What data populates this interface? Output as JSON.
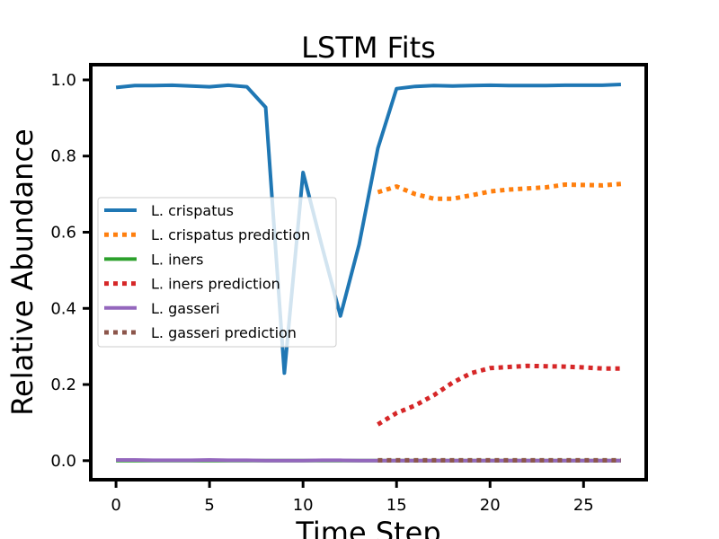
{
  "chart_data": {
    "type": "line",
    "title": "LSTM Fits",
    "xlabel": "Time Step",
    "ylabel": "Relative Abundance",
    "xlim": [
      -1.35,
      28.35
    ],
    "ylim": [
      -0.05,
      1.04
    ],
    "xticks": [
      0,
      5,
      10,
      15,
      20,
      25
    ],
    "yticks": [
      0.0,
      0.2,
      0.4,
      0.6,
      0.8,
      1.0
    ],
    "xtick_labels": [
      "0",
      "5",
      "10",
      "15",
      "20",
      "25"
    ],
    "ytick_labels": [
      "0.0",
      "0.2",
      "0.4",
      "0.6",
      "0.8",
      "1.0"
    ],
    "grid": false,
    "legend_position": "center-left",
    "series": [
      {
        "name": "L. crispatus",
        "color": "#1f77b4",
        "style": "solid",
        "x": [
          0,
          1,
          2,
          3,
          4,
          5,
          6,
          7,
          8,
          9,
          10,
          11,
          12,
          13,
          14,
          15,
          16,
          17,
          18,
          19,
          20,
          21,
          22,
          23,
          24,
          25,
          26,
          27
        ],
        "y": [
          0.98,
          0.985,
          0.985,
          0.986,
          0.984,
          0.982,
          0.986,
          0.982,
          0.928,
          0.23,
          0.757,
          0.565,
          0.38,
          0.568,
          0.82,
          0.977,
          0.983,
          0.985,
          0.984,
          0.985,
          0.986,
          0.985,
          0.985,
          0.985,
          0.986,
          0.986,
          0.986,
          0.988
        ]
      },
      {
        "name": "L. crispatus prediction",
        "color": "#ff7f0e",
        "style": "dotted",
        "x": [
          14,
          15,
          16,
          17,
          18,
          19,
          20,
          21,
          22,
          23,
          24,
          25,
          26,
          27
        ],
        "y": [
          0.705,
          0.72,
          0.7,
          0.688,
          0.688,
          0.697,
          0.707,
          0.712,
          0.715,
          0.718,
          0.725,
          0.724,
          0.723,
          0.727
        ]
      },
      {
        "name": "L. iners",
        "color": "#2ca02c",
        "style": "solid",
        "x": [
          0,
          1,
          2,
          3,
          4,
          5,
          6,
          7,
          8,
          9,
          10,
          11,
          12,
          13,
          14,
          15,
          16,
          17,
          18,
          19,
          20,
          21,
          22,
          23,
          24,
          25,
          26,
          27
        ],
        "y": [
          0.0,
          0.0,
          0.0,
          0.0,
          0.0,
          0.0,
          0.0,
          0.0,
          0.0,
          0.0,
          0.0,
          0.0,
          0.0,
          0.0,
          0.0,
          0.0,
          0.0,
          0.0,
          0.0,
          0.0,
          0.0,
          0.0,
          0.0,
          0.0,
          0.0,
          0.0,
          0.0,
          0.0
        ]
      },
      {
        "name": "L. iners prediction",
        "color": "#d62728",
        "style": "dotted",
        "x": [
          14,
          15,
          16,
          17,
          18,
          19,
          20,
          21,
          22,
          23,
          24,
          25,
          26,
          27
        ],
        "y": [
          0.095,
          0.125,
          0.145,
          0.172,
          0.205,
          0.23,
          0.243,
          0.246,
          0.249,
          0.248,
          0.247,
          0.245,
          0.242,
          0.242
        ]
      },
      {
        "name": "L. gasseri",
        "color": "#9467bd",
        "style": "solid",
        "x": [
          0,
          1,
          2,
          3,
          4,
          5,
          6,
          7,
          8,
          9,
          10,
          11,
          12,
          13,
          14,
          15,
          16,
          17,
          18,
          19,
          20,
          21,
          22,
          23,
          24,
          25,
          26,
          27
        ],
        "y": [
          0.002,
          0.002,
          0.001,
          0.001,
          0.001,
          0.002,
          0.001,
          0.001,
          0.0,
          0.0,
          0.0,
          0.001,
          0.001,
          0.0,
          0.0,
          0.0,
          0.0,
          0.0,
          0.0,
          0.0,
          0.0,
          0.0,
          0.0,
          0.0,
          0.0,
          0.0,
          0.0,
          0.0
        ]
      },
      {
        "name": "L. gasseri prediction",
        "color": "#8c564b",
        "style": "dotted",
        "x": [
          14,
          15,
          16,
          17,
          18,
          19,
          20,
          21,
          22,
          23,
          24,
          25,
          26,
          27
        ],
        "y": [
          0.001,
          0.001,
          0.001,
          0.001,
          0.001,
          0.001,
          0.001,
          0.001,
          0.001,
          0.001,
          0.001,
          0.001,
          0.001,
          0.001
        ]
      }
    ]
  }
}
